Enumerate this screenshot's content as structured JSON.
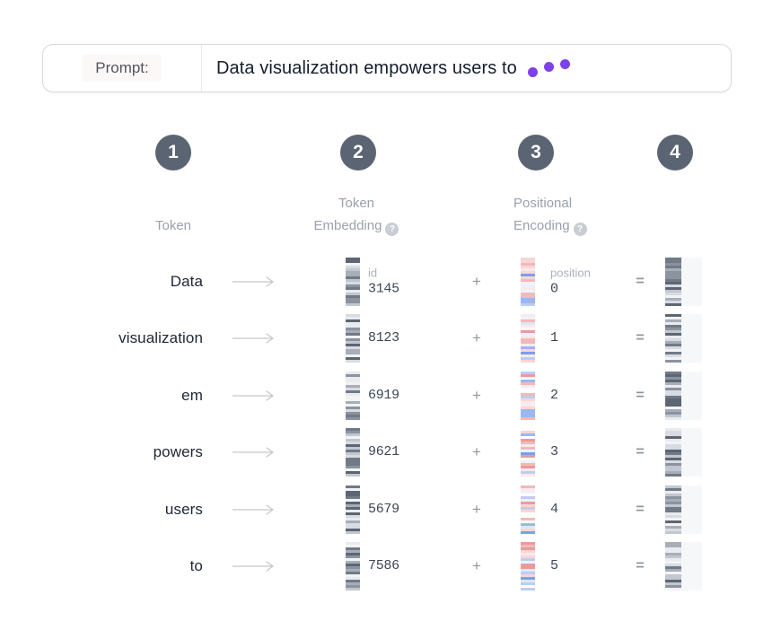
{
  "prompt": {
    "label": "Prompt:",
    "text": "Data visualization empowers users to"
  },
  "steps": [
    {
      "number": "1"
    },
    {
      "number": "2"
    },
    {
      "number": "3"
    },
    {
      "number": "4"
    }
  ],
  "headers": {
    "token": {
      "line1": "Token"
    },
    "embedding": {
      "line1": "Token",
      "line2": "Embedding"
    },
    "positional": {
      "line1": "Positional",
      "line2": "Encoding"
    }
  },
  "icons": {
    "help": "?"
  },
  "operators": {
    "plus": "+",
    "equals": "="
  },
  "rows": [
    {
      "token": "Data",
      "id_caption": "id",
      "id": "3145",
      "position_caption": "position",
      "position": "0"
    },
    {
      "token": "visualization",
      "id": "8123",
      "position": "1"
    },
    {
      "token": "em",
      "id": "6919",
      "position": "2"
    },
    {
      "token": "powers",
      "id": "9621",
      "position": "3"
    },
    {
      "token": "users",
      "id": "5679",
      "position": "4"
    },
    {
      "token": "to",
      "id": "7586",
      "position": "5"
    }
  ],
  "colors": {
    "accent": "#7e41e8",
    "circle": "#5b6472",
    "header_text": "#9aa1ac",
    "token_text": "#1d2634",
    "number_text": "#3d4654",
    "caption_text": "#abb0b9",
    "operator": "#9097a1",
    "arrow": "#c3c7cd",
    "border": "#d7d9de",
    "divider": "#ebebef",
    "label_text": "#53565e",
    "label_bg": "#fcf8f8",
    "panel": "#f6f7f9",
    "help_bg": "#c9cdd4"
  },
  "barcodes": {
    "gray_palette": [
      "#5d6673",
      "#717a87",
      "#8b939f",
      "#a7aeb8",
      "#c2c7cf",
      "#d8dce2",
      "#e9ebee",
      "#f2f3f5"
    ],
    "positional_palette": [
      "#7e9ee8",
      "#9db6ef",
      "#bccdf5",
      "#dde6fa",
      "#eef2fc",
      "#f7d6d6",
      "#f2b9b9",
      "#e89b9b",
      "#faeaea",
      "#ffffff"
    ]
  }
}
